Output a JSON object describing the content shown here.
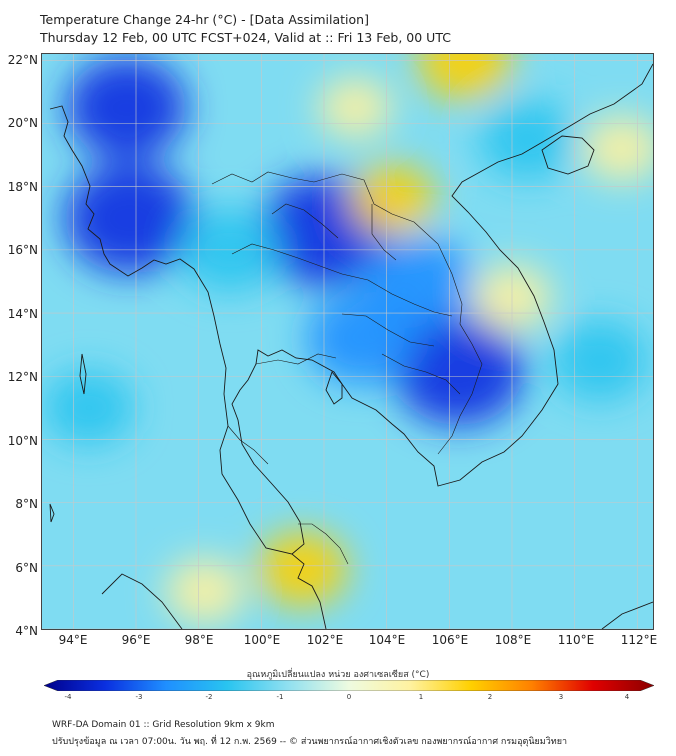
{
  "header": {
    "title_line1": "Temperature Change 24-hr (°C) - [Data Assimilation]",
    "title_line2": "Thursday 12 Feb, 00 UTC FCST+024, Valid at :: Fri 13 Feb, 00 UTC"
  },
  "map": {
    "lon_range": [
      93,
      112.5
    ],
    "lat_range": [
      4,
      22.2
    ],
    "lat_labels": [
      "22°N",
      "20°N",
      "18°N",
      "16°N",
      "14°N",
      "12°N",
      "10°N",
      "8°N",
      "6°N",
      "4°N"
    ],
    "lon_labels": [
      "94°E",
      "96°E",
      "98°E",
      "100°E",
      "102°E",
      "104°E",
      "106°E",
      "108°E",
      "110°E",
      "112°E"
    ],
    "field_regions": [
      {
        "lon": 95.8,
        "lat": 17.0,
        "change": -3.5
      },
      {
        "lon": 95.7,
        "lat": 20.5,
        "change": -3.0
      },
      {
        "lon": 102.0,
        "lat": 16.6,
        "change": -3.5
      },
      {
        "lon": 106.3,
        "lat": 12.2,
        "change": -3.5
      },
      {
        "lon": 103.2,
        "lat": 13.2,
        "change": -2.5
      },
      {
        "lon": 99.0,
        "lat": 16.0,
        "change": -2.0
      },
      {
        "lon": 105.0,
        "lat": 15.0,
        "change": -2.5
      },
      {
        "lon": 108.5,
        "lat": 19.5,
        "change": -1.8
      },
      {
        "lon": 110.8,
        "lat": 12.5,
        "change": -1.8
      },
      {
        "lon": 94.5,
        "lat": 11.0,
        "change": -1.5
      },
      {
        "lon": 101.3,
        "lat": 5.9,
        "change": 1.5
      },
      {
        "lon": 106.5,
        "lat": 22.0,
        "change": 1.8
      },
      {
        "lon": 104.2,
        "lat": 17.6,
        "change": 1.2
      },
      {
        "lon": 108.0,
        "lat": 14.5,
        "change": 1.0
      },
      {
        "lon": 111.5,
        "lat": 19.2,
        "change": 1.0
      },
      {
        "lon": 103.0,
        "lat": 20.5,
        "change": 0.7
      },
      {
        "lon": 98.2,
        "lat": 5.2,
        "change": 1.0
      }
    ],
    "colors": {
      "frame": "#444444",
      "coastline": "#1a1a1a",
      "grid": "#c8c8c8"
    }
  },
  "colorbar": {
    "title": "อุณหภูมิเปลี่ยนแปลง หน่วย องศาเซลเซียส (°C)",
    "min": -4,
    "max": 4,
    "tick_labels": [
      "-4",
      "-3",
      "-2",
      "-1",
      "0",
      "1",
      "2",
      "3",
      "4"
    ],
    "stops": [
      "#00008b",
      "#0a2fe0",
      "#1f8fff",
      "#29c4f0",
      "#90e0f0",
      "#eefbe0",
      "#fff2a0",
      "#ffd000",
      "#ff8000",
      "#e00000",
      "#8b0000"
    ]
  },
  "footer": {
    "line1": "WRF-DA Domain 01 :: Grid Resolution 9km x 9km",
    "line2": "ปรับปรุงข้อมูล ณ เวลา 07:00น. วัน พฤ. ที่ 12 ก.พ. 2569 -- © ส่วนพยากรณ์อากาศเชิงตัวเลข กองพยากรณ์อากาศ กรมอุตุนิยมวิทยา"
  }
}
